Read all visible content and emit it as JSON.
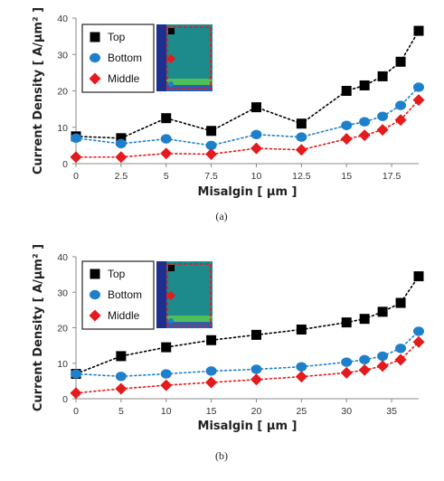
{
  "chart_data": [
    {
      "type": "line",
      "caption": "(a)",
      "xlabel": "Misalgin [ μm ]",
      "ylabel": "Current Density [ A/μm² ]",
      "xlim": [
        0,
        19
      ],
      "ylim": [
        0,
        40
      ],
      "xticks": [
        0,
        2.5,
        5,
        7.5,
        10,
        12.5,
        15,
        17.5
      ],
      "xtick_labels": [
        "0",
        "2.5",
        "5",
        "7.5",
        "10",
        "12.5",
        "15",
        "17.5"
      ],
      "yticks": [
        0,
        10,
        20,
        30,
        40
      ],
      "grid": false,
      "legend": "top-left",
      "series": [
        {
          "name": "Top",
          "color": "#000000",
          "marker": "square",
          "x": [
            0,
            2.5,
            5,
            7.5,
            10,
            12.5,
            15,
            16,
            17,
            18,
            19
          ],
          "y": [
            7.5,
            7,
            12.5,
            9,
            15.5,
            11,
            20,
            21.5,
            24,
            28,
            36.5
          ]
        },
        {
          "name": "Bottom",
          "color": "#1e7fcb",
          "marker": "circle",
          "x": [
            0,
            2.5,
            5,
            7.5,
            10,
            12.5,
            15,
            16,
            17,
            18,
            19
          ],
          "y": [
            7,
            5.5,
            6.8,
            5,
            8,
            7.3,
            10.5,
            11.5,
            13,
            16,
            21
          ]
        },
        {
          "name": "Middle",
          "color": "#e41a1c",
          "marker": "diamond",
          "x": [
            0,
            2.5,
            5,
            7.5,
            10,
            12.5,
            15,
            16,
            17,
            18,
            19
          ],
          "y": [
            1.8,
            1.8,
            2.8,
            2.6,
            4.2,
            3.8,
            6.8,
            7.8,
            9.3,
            12,
            17.5
          ]
        }
      ]
    },
    {
      "type": "line",
      "caption": "(b)",
      "xlabel": "Misalgin [ μm ]",
      "ylabel": "Current Density [ A/μm² ]",
      "xlim": [
        0,
        38
      ],
      "ylim": [
        0,
        40
      ],
      "xticks": [
        0,
        5,
        10,
        15,
        20,
        25,
        30,
        35
      ],
      "xtick_labels": [
        "0",
        "5",
        "10",
        "15",
        "20",
        "25",
        "30",
        "35"
      ],
      "yticks": [
        0,
        10,
        20,
        30,
        40
      ],
      "grid": false,
      "legend": "top-left",
      "series": [
        {
          "name": "Top",
          "color": "#000000",
          "marker": "square",
          "x": [
            0,
            5,
            10,
            15,
            20,
            25,
            30,
            32,
            34,
            36,
            38
          ],
          "y": [
            7,
            12,
            14.5,
            16.5,
            18,
            19.5,
            21.5,
            22.5,
            24.5,
            27,
            34.5
          ]
        },
        {
          "name": "Bottom",
          "color": "#1e7fcb",
          "marker": "circle",
          "x": [
            0,
            5,
            10,
            15,
            20,
            25,
            30,
            32,
            34,
            36,
            38
          ],
          "y": [
            7,
            6.3,
            7,
            7.8,
            8.3,
            9,
            10.3,
            11,
            12,
            14.2,
            19
          ]
        },
        {
          "name": "Middle",
          "color": "#e41a1c",
          "marker": "diamond",
          "x": [
            0,
            5,
            10,
            15,
            20,
            25,
            30,
            32,
            34,
            36,
            38
          ],
          "y": [
            1.6,
            2.8,
            3.8,
            4.6,
            5.4,
            6.2,
            7.3,
            8.1,
            9.2,
            11,
            16
          ]
        }
      ]
    }
  ]
}
